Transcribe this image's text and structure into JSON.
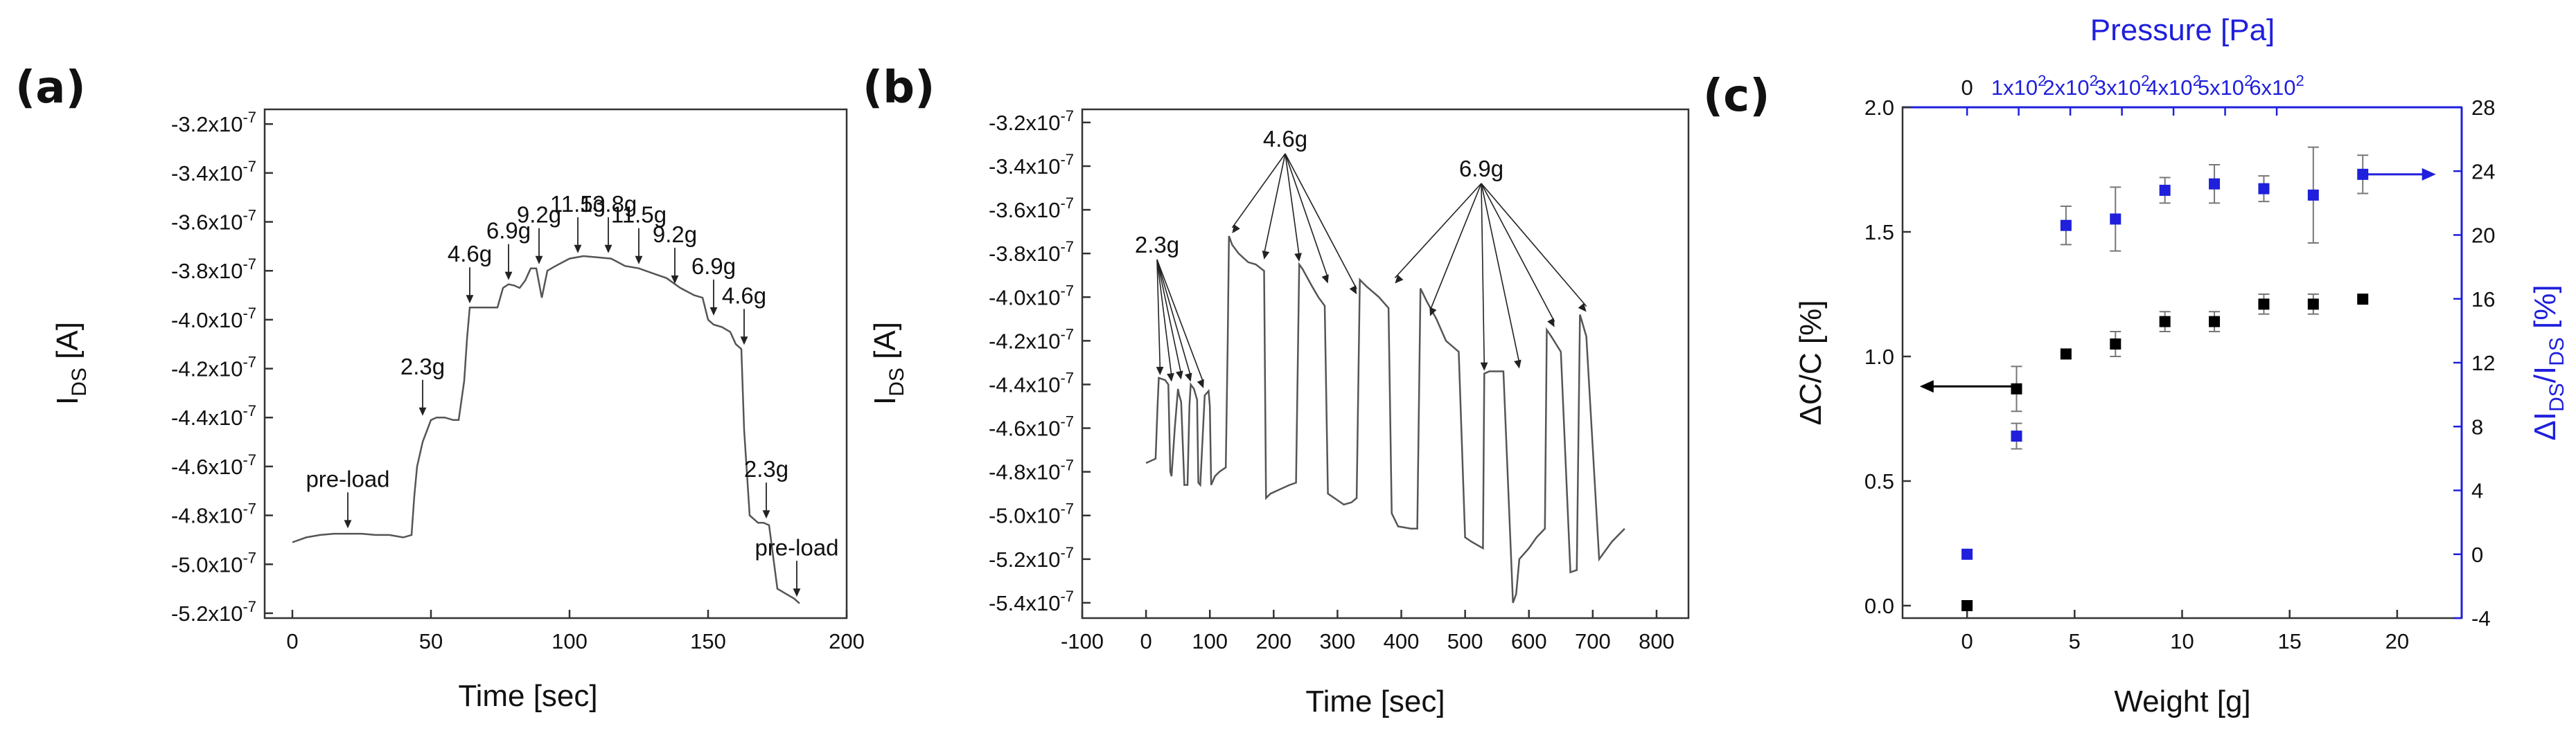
{
  "chart_data": [
    {
      "type": "line",
      "panel": "(a)",
      "xlabel": "Time [sec]",
      "ylabel_main": "I",
      "ylabel_sub": "DS",
      "ylabel_unit": " [A]",
      "xlim": [
        -10,
        200
      ],
      "ylim": [
        -5.22e-07,
        -3.14e-07
      ],
      "x_ticks": [
        0,
        50,
        100,
        150,
        200
      ],
      "x_tick_labels": [
        "0",
        "50",
        "100",
        "150",
        "200"
      ],
      "y_ticks": [
        -3.2e-07,
        -3.4e-07,
        -3.6e-07,
        -3.8e-07,
        -4e-07,
        -4.2e-07,
        -4.4e-07,
        -4.6e-07,
        -4.8e-07,
        -5e-07,
        -5.2e-07
      ],
      "y_tick_labels": [
        "-3.2x10<sup>-7</sup>",
        "-3.4x10<sup>-7</sup>",
        "-3.6x10<sup>-7</sup>",
        "-3.8x10<sup>-7</sup>",
        "-4.0x10<sup>-7</sup>",
        "-4.2x10<sup>-7</sup>",
        "-4.4x10<sup>-7</sup>",
        "-4.6x10<sup>-7</sup>",
        "-4.8x10<sup>-7</sup>",
        "-5.0x10<sup>-7</sup>",
        "-5.2x10<sup>-7</sup>"
      ],
      "series": [
        {
          "name": "I_DS",
          "x": [
            0,
            5,
            10,
            15,
            20,
            25,
            30,
            35,
            40,
            43,
            44,
            45,
            47,
            50,
            52,
            55,
            58,
            60,
            62,
            63,
            64,
            66,
            70,
            74,
            76,
            78,
            80,
            82,
            84,
            86,
            88,
            90,
            92,
            95,
            100,
            105,
            110,
            115,
            120,
            125,
            130,
            135,
            140,
            145,
            148,
            150,
            152,
            155,
            158,
            160,
            162,
            163,
            165,
            167,
            168,
            170,
            172,
            175,
            178,
            181,
            183
          ],
          "y": [
            -4.91e-07,
            -4.89e-07,
            -4.88e-07,
            -4.875e-07,
            -4.875e-07,
            -4.875e-07,
            -4.88e-07,
            -4.88e-07,
            -4.89e-07,
            -4.88e-07,
            -4.72e-07,
            -4.6e-07,
            -4.5e-07,
            -4.41e-07,
            -4.4e-07,
            -4.4e-07,
            -4.41e-07,
            -4.41e-07,
            -4.25e-07,
            -4.08e-07,
            -3.95e-07,
            -3.95e-07,
            -3.95e-07,
            -3.95e-07,
            -3.87e-07,
            -3.855e-07,
            -3.86e-07,
            -3.87e-07,
            -3.84e-07,
            -3.79e-07,
            -3.79e-07,
            -3.91e-07,
            -3.8e-07,
            -3.78e-07,
            -3.75e-07,
            -3.74e-07,
            -3.745e-07,
            -3.75e-07,
            -3.78e-07,
            -3.79e-07,
            -3.81e-07,
            -3.83e-07,
            -3.87e-07,
            -3.9e-07,
            -3.91e-07,
            -4e-07,
            -4.02e-07,
            -4.03e-07,
            -4.05e-07,
            -4.1e-07,
            -4.12e-07,
            -4.45e-07,
            -4.8e-07,
            -4.82e-07,
            -4.83e-07,
            -4.83e-07,
            -4.84e-07,
            -5.1e-07,
            -5.12e-07,
            -5.14e-07,
            -5.16e-07
          ]
        }
      ],
      "annotations": [
        {
          "text": "pre-load",
          "x": 20,
          "y": -4.87e-07
        },
        {
          "text": "2.3g",
          "x": 47,
          "y": -4.41e-07
        },
        {
          "text": "4.6g",
          "x": 64,
          "y": -3.95e-07
        },
        {
          "text": "6.9g",
          "x": 78,
          "y": -3.855e-07
        },
        {
          "text": "9.2g",
          "x": 89,
          "y": -3.79e-07
        },
        {
          "text": "11.5g",
          "x": 103,
          "y": -3.745e-07
        },
        {
          "text": "13.8g",
          "x": 114,
          "y": -3.745e-07
        },
        {
          "text": "11.5g",
          "x": 125,
          "y": -3.79e-07
        },
        {
          "text": "9.2g",
          "x": 138,
          "y": -3.87e-07
        },
        {
          "text": "6.9g",
          "x": 152,
          "y": -4e-07
        },
        {
          "text": "4.6g",
          "x": 163,
          "y": -4.12e-07
        },
        {
          "text": "2.3g",
          "x": 171,
          "y": -4.83e-07
        },
        {
          "text": "pre-load",
          "x": 182,
          "y": -5.15e-07
        }
      ]
    },
    {
      "type": "line",
      "panel": "(b)",
      "xlabel": "Time [sec]",
      "ylabel_main": "I",
      "ylabel_sub": "DS",
      "ylabel_unit": " [A]",
      "xlim": [
        -100,
        850
      ],
      "ylim": [
        -5.47e-07,
        -3.14e-07
      ],
      "x_ticks": [
        -100,
        0,
        100,
        200,
        300,
        400,
        500,
        600,
        700,
        800
      ],
      "x_tick_labels": [
        "-100",
        "0",
        "100",
        "200",
        "300",
        "400",
        "500",
        "600",
        "700",
        "800"
      ],
      "y_ticks": [
        -3.2e-07,
        -3.4e-07,
        -3.6e-07,
        -3.8e-07,
        -4e-07,
        -4.2e-07,
        -4.4e-07,
        -4.6e-07,
        -4.8e-07,
        -5e-07,
        -5.2e-07,
        -5.4e-07
      ],
      "y_tick_labels": [
        "-3.2x10<sup>-7</sup>",
        "-3.4x10<sup>-7</sup>",
        "-3.6x10<sup>-7</sup>",
        "-3.8x10<sup>-7</sup>",
        "-4.0x10<sup>-7</sup>",
        "-4.2x10<sup>-7</sup>",
        "-4.4x10<sup>-7</sup>",
        "-4.6x10<sup>-7</sup>",
        "-4.8x10<sup>-7</sup>",
        "-5.0x10<sup>-7</sup>",
        "-5.2x10<sup>-7</sup>",
        "-5.4x10<sup>-7</sup>"
      ],
      "series": [
        {
          "name": "I_DS",
          "x": [
            0,
            15,
            18,
            20,
            30,
            35,
            38,
            40,
            45,
            50,
            52,
            55,
            60,
            65,
            68,
            70,
            75,
            80,
            82,
            85,
            92,
            98,
            100,
            102,
            108,
            115,
            125,
            128,
            130,
            135,
            145,
            160,
            172,
            185,
            188,
            195,
            210,
            225,
            235,
            240,
            245,
            260,
            270,
            280,
            285,
            295,
            310,
            322,
            330,
            335,
            345,
            365,
            380,
            385,
            395,
            415,
            425,
            430,
            440,
            455,
            470,
            490,
            500,
            510,
            528,
            530,
            538,
            548,
            560,
            575,
            580,
            585,
            600,
            612,
            625,
            628,
            635,
            650,
            665,
            675,
            680,
            690,
            710,
            730,
            750
          ],
          "y": [
            -4.76e-07,
            -4.74e-07,
            -4.5e-07,
            -4.37e-07,
            -4.38e-07,
            -4.4e-07,
            -4.8e-07,
            -4.82e-07,
            -4.6e-07,
            -4.42e-07,
            -4.45e-07,
            -4.48e-07,
            -4.86e-07,
            -4.86e-07,
            -4.5e-07,
            -4.4e-07,
            -4.42e-07,
            -4.47e-07,
            -4.85e-07,
            -4.86e-07,
            -4.45e-07,
            -4.43e-07,
            -4.5e-07,
            -4.86e-07,
            -4.82e-07,
            -4.8e-07,
            -4.78e-07,
            -4.2e-07,
            -3.72e-07,
            -3.76e-07,
            -3.8e-07,
            -3.84e-07,
            -3.85e-07,
            -3.88e-07,
            -4.92e-07,
            -4.9e-07,
            -4.88e-07,
            -4.86e-07,
            -4.85e-07,
            -3.85e-07,
            -3.87e-07,
            -3.95e-07,
            -4e-07,
            -4.04e-07,
            -4.9e-07,
            -4.92e-07,
            -4.95e-07,
            -4.94e-07,
            -4.92e-07,
            -3.92e-07,
            -3.95e-07,
            -4e-07,
            -4.05e-07,
            -4.99e-07,
            -5.05e-07,
            -5.06e-07,
            -5.06e-07,
            -3.96e-07,
            -4.02e-07,
            -4.1e-07,
            -4.2e-07,
            -4.25e-07,
            -5.1e-07,
            -5.12e-07,
            -5.15e-07,
            -4.35e-07,
            -4.34e-07,
            -4.34e-07,
            -4.34e-07,
            -5.4e-07,
            -5.36e-07,
            -5.2e-07,
            -5.15e-07,
            -5.1e-07,
            -5.06e-07,
            -4.15e-07,
            -4.18e-07,
            -4.25e-07,
            -5.26e-07,
            -5.25e-07,
            -4.08e-07,
            -4.18e-07,
            -5.2e-07,
            -5.12e-07,
            -5.06e-07
          ]
        }
      ],
      "annotation_groups": [
        {
          "text": "2.3g",
          "targets": [
            [
              22,
              -4.37e-07
            ],
            [
              40,
              -4.4e-07
            ],
            [
              55,
              -4.39e-07
            ],
            [
              70,
              -4.4e-07
            ],
            [
              90,
              -4.43e-07
            ]
          ]
        },
        {
          "text": "4.6g",
          "targets": [
            [
              135,
              -3.72e-07
            ],
            [
              185,
              -3.84e-07
            ],
            [
              240,
              -3.85e-07
            ],
            [
              285,
              -3.95e-07
            ],
            [
              330,
              -4e-07
            ]
          ]
        },
        {
          "text": "6.9g",
          "targets": [
            [
              390,
              -3.95e-07
            ],
            [
              445,
              -4.1e-07
            ],
            [
              530,
              -4.35e-07
            ],
            [
              585,
              -4.34e-07
            ],
            [
              640,
              -4.15e-07
            ],
            [
              690,
              -4.08e-07
            ]
          ]
        }
      ]
    },
    {
      "type": "scatter",
      "panel": "(c)",
      "xlabel": "Weight [g]",
      "ylabel_left": "ΔC/C [%]",
      "ylabel_right_main": "ΔI",
      "ylabel_right_sub1": "DS",
      "ylabel_right_mid": "/I",
      "ylabel_right_sub2": "DS",
      "ylabel_right_unit": " [%]",
      "top_xlabel": "Pressure [Pa]",
      "xlim": [
        -3,
        23
      ],
      "ylim_left": [
        -0.05,
        2.0
      ],
      "ylim_right": [
        -4,
        28
      ],
      "x_ticks": [
        0,
        5,
        10,
        15,
        20
      ],
      "x_tick_labels": [
        "0",
        "5",
        "10",
        "15",
        "20"
      ],
      "y_left_ticks": [
        0.0,
        0.5,
        1.0,
        1.5,
        2.0
      ],
      "y_left_tick_labels": [
        "0.0",
        "0.5",
        "1.0",
        "1.5",
        "2.0"
      ],
      "y_right_ticks": [
        -4,
        0,
        4,
        8,
        12,
        16,
        20,
        24,
        28
      ],
      "y_right_tick_labels": [
        "-4",
        "0",
        "4",
        "8",
        "12",
        "16",
        "20",
        "24",
        "28"
      ],
      "top_ticks_weight": [
        0,
        2.4,
        4.8,
        7.2,
        9.6,
        12.0,
        14.4
      ],
      "top_tick_labels": [
        "0",
        "1x10<sup>2</sup>",
        "2x10<sup>2</sup>",
        "3x10<sup>2</sup>",
        "4x10<sup>2</sup>",
        "5x10<sup>2</sup>",
        "6x10<sup>2</sup>"
      ],
      "series": [
        {
          "name": "ΔC/C",
          "axis": "left",
          "color": "#000000",
          "x": [
            0,
            2.3,
            4.6,
            6.9,
            9.2,
            11.5,
            13.8,
            16.1,
            18.4
          ],
          "y": [
            0.0,
            0.87,
            1.01,
            1.05,
            1.14,
            1.14,
            1.21,
            1.21,
            1.23
          ],
          "err": [
            0,
            0.09,
            0,
            0.05,
            0.04,
            0.04,
            0.04,
            0.04,
            0
          ]
        },
        {
          "name": "ΔIDS/IDS",
          "axis": "right",
          "color": "#1f1fdc",
          "x": [
            0,
            2.3,
            4.6,
            6.9,
            9.2,
            11.5,
            13.8,
            16.1,
            18.4
          ],
          "y": [
            0.0,
            7.4,
            20.6,
            21.0,
            22.8,
            23.2,
            22.9,
            22.5,
            23.8
          ],
          "err": [
            0,
            0.8,
            1.2,
            2.0,
            0.8,
            1.2,
            0.8,
            3.0,
            1.2
          ]
        }
      ],
      "arrows": [
        {
          "from": [
            2.1,
            0.88
          ],
          "to": [
            -2.2,
            0.88
          ],
          "axis": "left",
          "color": "#000000"
        },
        {
          "from": [
            18.6,
            23.8
          ],
          "to": [
            21.8,
            23.8
          ],
          "axis": "right",
          "color": "#1f1fdc"
        }
      ]
    }
  ],
  "colors": {
    "black": "#000000",
    "blue": "#1f1fdc"
  }
}
